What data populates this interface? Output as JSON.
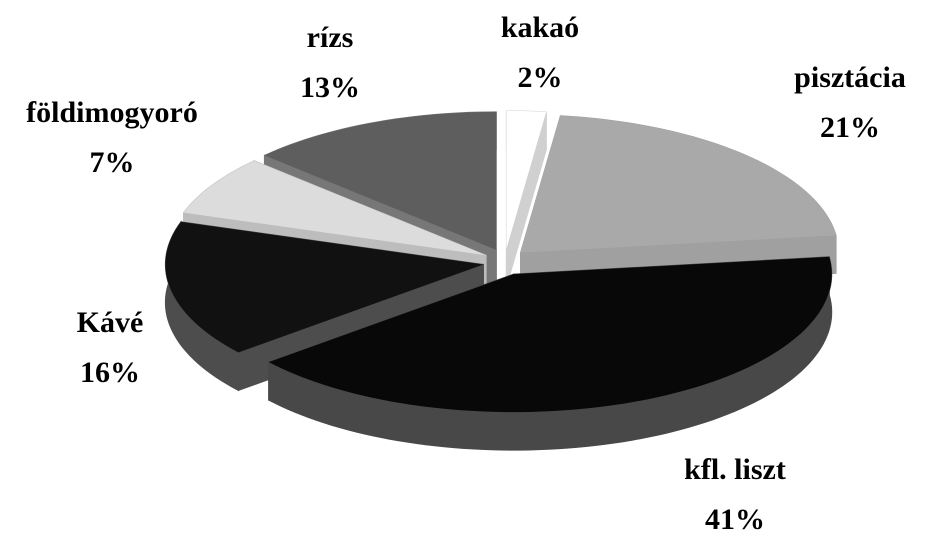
{
  "chart_data": {
    "type": "pie3d",
    "categories": [
      "kakaó",
      "pisztácia",
      "kfl. liszt",
      "Kávé",
      "földimogyoró",
      "rízs"
    ],
    "values": [
      2,
      21,
      41,
      16,
      7,
      13
    ],
    "value_labels": [
      "2%",
      "21%",
      "41%",
      "16%",
      "7%",
      "13%"
    ],
    "colors": [
      "#ffffff",
      "#a9a9a9",
      "#080808",
      "#111111",
      "#dcdcdc",
      "#5e5e5e"
    ]
  }
}
